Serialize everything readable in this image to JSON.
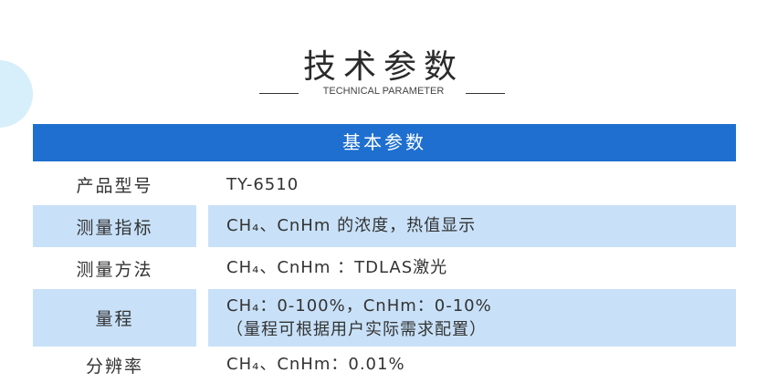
{
  "title": "技术参数",
  "subtitle": "TECHNICAL PARAMETER",
  "section": "基本参数",
  "rows": [
    {
      "label": "产品型号",
      "value": "TY-6510"
    },
    {
      "label": "测量指标",
      "value": "CH₄、CnHm 的浓度，热值显示"
    },
    {
      "label": "测量方法",
      "value": "CH₄、CnHm ：TDLAS激光"
    },
    {
      "label": "量程",
      "value": "CH₄：0-100%，CnHm：0-10%",
      "note": "（量程可根据用户实际需求配置）"
    },
    {
      "label": "分辨率",
      "value": "CH₄、CnHm：0.01%"
    }
  ]
}
